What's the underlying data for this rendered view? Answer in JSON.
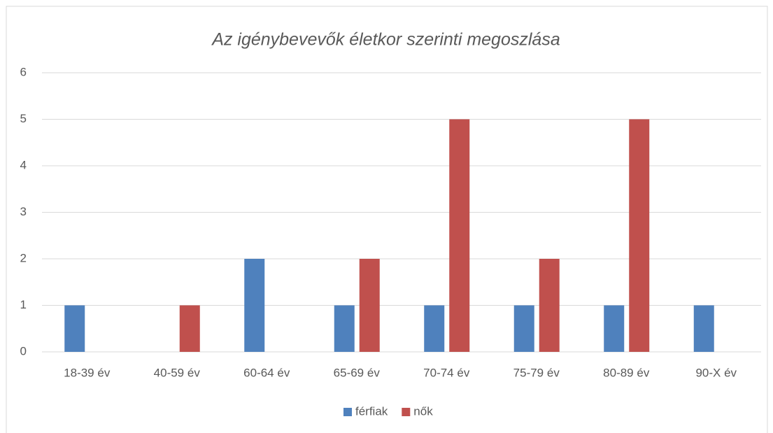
{
  "chart_data": {
    "type": "bar",
    "title": "Az igénybevevők életkor szerinti megoszlása",
    "categories": [
      "18-39 év",
      "40-59 év",
      "60-64 év",
      "65-69 év",
      "70-74 év",
      "75-79 év",
      "80-89 év",
      "90-X év"
    ],
    "series": [
      {
        "name": "férfiak",
        "color": "#4f81bd",
        "values": [
          1,
          0,
          2,
          1,
          1,
          1,
          1,
          1
        ]
      },
      {
        "name": "nők",
        "color": "#c0504d",
        "values": [
          0,
          1,
          0,
          2,
          5,
          2,
          5,
          0
        ]
      }
    ],
    "ylim": [
      0,
      6
    ],
    "yticks": [
      0,
      1,
      2,
      3,
      4,
      5,
      6
    ],
    "grid": true,
    "legend": "bottom"
  }
}
